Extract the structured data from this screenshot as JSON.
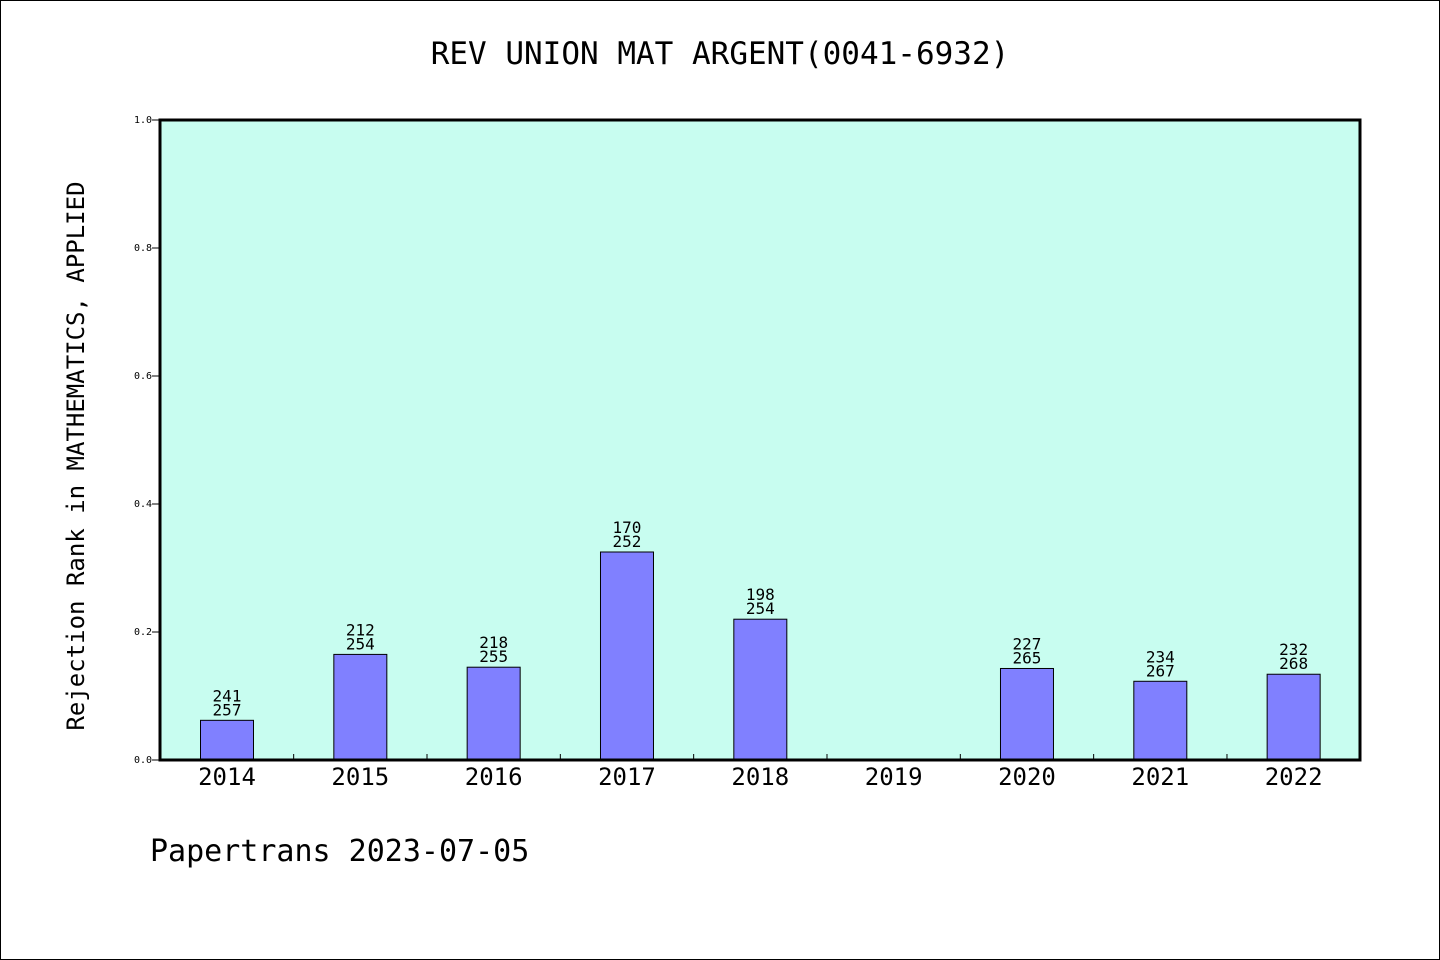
{
  "chart_data": {
    "type": "bar",
    "title": "REV UNION MAT ARGENT(0041-6932)",
    "xlabel": "",
    "ylabel": "Rejection Rank in MATHEMATICS, APPLIED",
    "categories": [
      "2014",
      "2015",
      "2016",
      "2017",
      "2018",
      "2019",
      "2020",
      "2021",
      "2022"
    ],
    "values": [
      0.062,
      0.165,
      0.145,
      0.325,
      0.22,
      null,
      0.143,
      0.123,
      0.134
    ],
    "bar_labels_top": [
      "241",
      "212",
      "218",
      "170",
      "198",
      "",
      "227",
      "234",
      "232"
    ],
    "bar_labels_bottom": [
      "257",
      "254",
      "255",
      "252",
      "254",
      "",
      "265",
      "267",
      "268"
    ],
    "ylim": [
      0,
      1.0
    ],
    "yticks": [
      "0.0",
      "0.2",
      "0.4",
      "0.6",
      "0.8",
      "1.0"
    ],
    "grid": false,
    "legend": "none",
    "colors": {
      "bar": "#8080ff",
      "plot_background": "#c8fdf0"
    }
  },
  "footer": {
    "text": "Papertrans 2023-07-05"
  }
}
